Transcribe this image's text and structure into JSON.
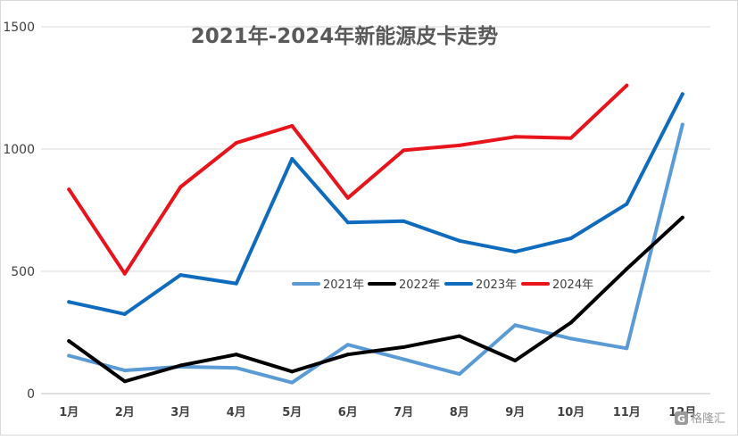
{
  "chart_data": {
    "type": "line",
    "title": "2021年-2024年新能源皮卡走势",
    "xlabel": "",
    "ylabel": "",
    "categories": [
      "1月",
      "2月",
      "3月",
      "4月",
      "5月",
      "6月",
      "7月",
      "8月",
      "9月",
      "10月",
      "11月",
      "12月"
    ],
    "ylim": [
      0,
      1500
    ],
    "yticks": [
      "0",
      "500",
      "1000",
      "1500"
    ],
    "grid": true,
    "legend_position": "center",
    "series": [
      {
        "name": "2021年",
        "color": "#5b9bd5",
        "values": [
          155,
          95,
          110,
          105,
          45,
          200,
          140,
          80,
          280,
          225,
          185,
          1100
        ]
      },
      {
        "name": "2022年",
        "color": "#000000",
        "values": [
          215,
          50,
          115,
          160,
          90,
          160,
          190,
          235,
          135,
          290,
          510,
          720
        ]
      },
      {
        "name": "2023年",
        "color": "#0f6bbd",
        "values": [
          375,
          325,
          485,
          450,
          960,
          700,
          705,
          625,
          580,
          635,
          775,
          1225
        ]
      },
      {
        "name": "2024年",
        "color": "#e8141c",
        "values": [
          835,
          490,
          845,
          1025,
          1095,
          800,
          995,
          1015,
          1050,
          1045,
          1260,
          null
        ]
      }
    ]
  },
  "watermark": {
    "text": "格隆汇",
    "icon": "glh-logo-icon"
  }
}
